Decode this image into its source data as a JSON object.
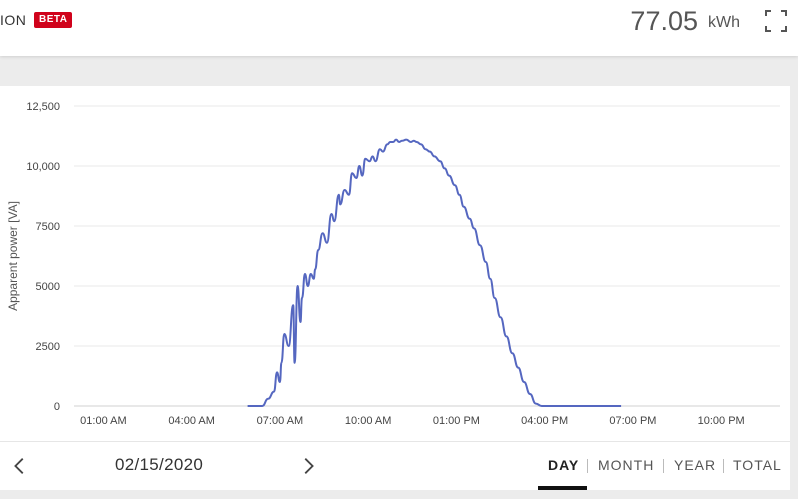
{
  "header": {
    "title": "ION",
    "badge": "BETA",
    "energy_value": "77.05",
    "energy_unit": "kWh"
  },
  "chart_data": {
    "type": "line",
    "ylabel": "Apparent power [VA]",
    "ylim": [
      0,
      12500
    ],
    "y_ticks": [
      "0",
      "2500",
      "5000",
      "7500",
      "10,000",
      "12,500"
    ],
    "y_tick_values": [
      0,
      2500,
      5000,
      7500,
      10000,
      12500
    ],
    "xlim": [
      0,
      24
    ],
    "x_ticks": [
      "01:00 AM",
      "04:00 AM",
      "07:00 AM",
      "10:00 AM",
      "01:00 PM",
      "04:00 PM",
      "07:00 PM",
      "10:00 PM"
    ],
    "x_tick_values": [
      1,
      4,
      7,
      10,
      13,
      16,
      19,
      22
    ],
    "grid": true,
    "color": "#5567c0",
    "series": [
      {
        "x": [
          5.9,
          6.4,
          6.6,
          6.8,
          6.9,
          7.0,
          7.05,
          7.15,
          7.3,
          7.45,
          7.5,
          7.6,
          7.7,
          7.75,
          7.85,
          7.95,
          8.05,
          8.15,
          8.2,
          8.3,
          8.45,
          8.6,
          8.75,
          8.85,
          9.0,
          9.05,
          9.2,
          9.35,
          9.45,
          9.6,
          9.7,
          9.8,
          9.9,
          10.05,
          10.15,
          10.25,
          10.4,
          10.5,
          10.65,
          10.75,
          10.85,
          10.95,
          11.05,
          11.15,
          11.3,
          11.45,
          11.55,
          11.65,
          11.8,
          11.95,
          12.1,
          12.25,
          12.45,
          12.6,
          12.75,
          12.95,
          13.1,
          13.25,
          13.45,
          13.6,
          13.8,
          14.0,
          14.15,
          14.3,
          14.5,
          14.7,
          14.9,
          15.1,
          15.3,
          15.5,
          15.7,
          15.9,
          16.1,
          16.3,
          16.5,
          16.7,
          16.9,
          17.1,
          17.3,
          17.5,
          17.7,
          17.9,
          18.05,
          18.2,
          18.4,
          18.6
        ],
        "y": [
          0,
          0,
          300,
          600,
          1400,
          1000,
          1800,
          3000,
          2500,
          4200,
          1800,
          5000,
          3500,
          4500,
          5500,
          5000,
          5500,
          5300,
          5700,
          6500,
          7200,
          6800,
          8000,
          7700,
          8800,
          8400,
          9000,
          8800,
          9700,
          9500,
          10000,
          9600,
          10300,
          10200,
          10400,
          10200,
          10700,
          10600,
          10900,
          11000,
          11000,
          11100,
          11000,
          11050,
          11100,
          11000,
          11050,
          11000,
          10900,
          10700,
          10600,
          10400,
          10200,
          9900,
          9600,
          9200,
          8800,
          8300,
          7800,
          7400,
          6700,
          6000,
          5300,
          4500,
          3700,
          2900,
          2200,
          1600,
          1000,
          500,
          100,
          0,
          0,
          0,
          0,
          0,
          0,
          0,
          0,
          0,
          0,
          0,
          0,
          0,
          0,
          0
        ]
      }
    ]
  },
  "navigation": {
    "date": "02/15/2020",
    "tabs": [
      "DAY",
      "MONTH",
      "YEAR",
      "TOTAL"
    ],
    "active_tab": "DAY"
  }
}
